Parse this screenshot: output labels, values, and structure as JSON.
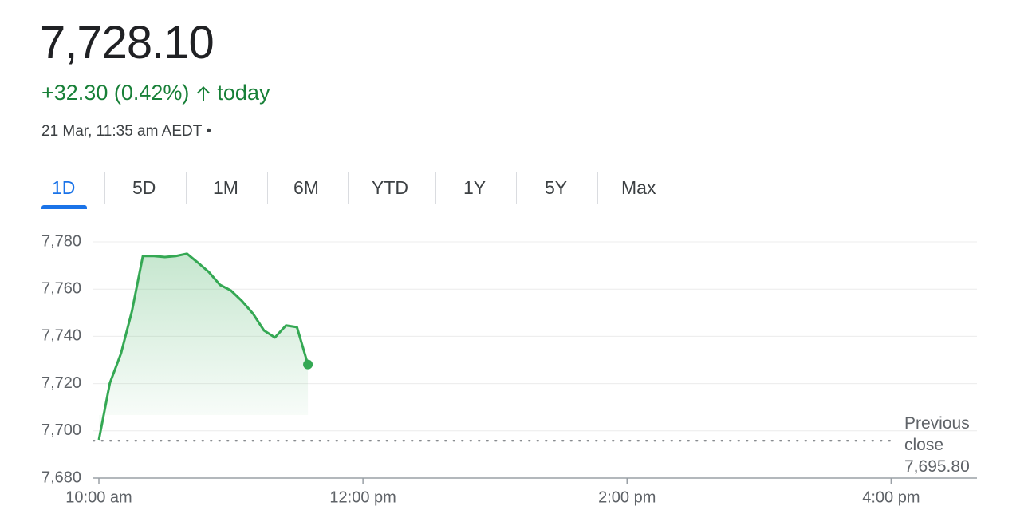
{
  "header": {
    "price": "7,728.10",
    "change": "+32.30 (0.42%)",
    "period": "today",
    "timestamp": "21 Mar, 11:35 am AEDT •"
  },
  "tabs": [
    "1D",
    "5D",
    "1M",
    "6M",
    "YTD",
    "1Y",
    "5Y",
    "Max"
  ],
  "chart_data": {
    "type": "line",
    "color": "#34a853",
    "grid": true,
    "x": [
      10,
      10.083,
      10.167,
      10.25,
      10.333,
      10.417,
      10.5,
      10.583,
      10.667,
      10.75,
      10.833,
      10.917,
      11,
      11.083,
      11.167,
      11.25,
      11.333,
      11.417,
      11.5,
      11.583
    ],
    "values": [
      7696.2,
      7720.2,
      7732.7,
      7750.6,
      7774,
      7774,
      7773.6,
      7774,
      7775,
      7771.2,
      7767.2,
      7761.8,
      7759.4,
      7755,
      7749.6,
      7742.5,
      7739.5,
      7744.6,
      7743.9,
      7728.1
    ],
    "xlim": [
      10,
      16.65
    ],
    "xticks": [
      {
        "value": 10,
        "label": "10:00 am"
      },
      {
        "value": 12,
        "label": "12:00 pm"
      },
      {
        "value": 14,
        "label": "2:00 pm"
      },
      {
        "value": 16,
        "label": "4:00 pm"
      }
    ],
    "ylim": [
      7680,
      7780
    ],
    "yticks": [
      {
        "value": 7680,
        "label": "7,680"
      },
      {
        "value": 7700,
        "label": "7,700"
      },
      {
        "value": 7720,
        "label": "7,720"
      },
      {
        "value": 7740,
        "label": "7,740"
      },
      {
        "value": 7760,
        "label": "7,760"
      },
      {
        "value": 7780,
        "label": "7,780"
      }
    ],
    "previous_close": {
      "label": "Previous close",
      "value": 7695.8,
      "value_label": "7,695.80"
    }
  }
}
